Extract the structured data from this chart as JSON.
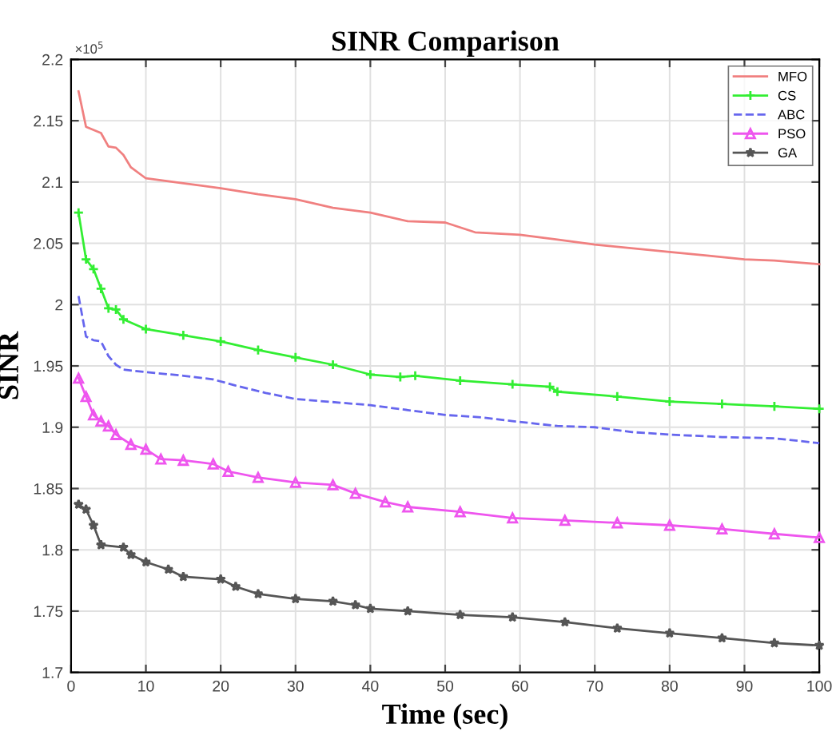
{
  "chart_data": {
    "type": "line",
    "title": "SINR Comparison",
    "xlabel": "Time (sec)",
    "ylabel": "SINR",
    "annotations": [
      "×10$^{5}$"
    ],
    "xlim": [
      0,
      100
    ],
    "xticks": [
      0,
      10,
      20,
      30,
      40,
      50,
      60,
      70,
      80,
      90,
      100
    ],
    "ylim": [
      1.7,
      2.2
    ],
    "yticks": [
      1.7,
      1.75,
      1.8,
      1.85,
      1.9,
      1.95,
      2,
      2.05,
      2.1,
      2.15,
      2.2
    ],
    "grid": true,
    "legend": "top right",
    "series": [
      {
        "name": "MFO",
        "color": "#f08080",
        "marker": "none",
        "line_style": "solid",
        "x": [
          1,
          2,
          4,
          5,
          6,
          7,
          8,
          10,
          15,
          20,
          25,
          30,
          35,
          40,
          45,
          50,
          54,
          60,
          65,
          70,
          80,
          85,
          90,
          94,
          100
        ],
        "values": [
          2.174,
          2.145,
          2.14,
          2.129,
          2.128,
          2.122,
          2.112,
          2.103,
          2.099,
          2.095,
          2.09,
          2.086,
          2.079,
          2.075,
          2.068,
          2.067,
          2.059,
          2.057,
          2.053,
          2.049,
          2.043,
          2.04,
          2.037,
          2.036,
          2.033
        ]
      },
      {
        "name": "CS",
        "color": "#33ee33",
        "marker": "cross",
        "line_style": "solid",
        "x": [
          1,
          2,
          3,
          4,
          5,
          6,
          7,
          10,
          15,
          20,
          25,
          30,
          35,
          40,
          44,
          46,
          52,
          59,
          64,
          65,
          73,
          80,
          87,
          94,
          100
        ],
        "values": [
          2.075,
          2.037,
          2.029,
          2.013,
          1.997,
          1.996,
          1.988,
          1.98,
          1.975,
          1.97,
          1.963,
          1.957,
          1.951,
          1.943,
          1.941,
          1.942,
          1.938,
          1.935,
          1.933,
          1.929,
          1.925,
          1.921,
          1.919,
          1.917,
          1.915
        ]
      },
      {
        "name": "ABC",
        "color": "#6666ee",
        "marker": "none",
        "line_style": "dashed",
        "x": [
          1,
          2,
          3,
          4,
          5,
          6,
          7,
          10,
          15,
          19,
          22,
          26,
          30,
          36,
          40,
          45,
          50,
          55,
          59,
          65,
          70,
          75,
          80,
          87,
          94,
          100
        ],
        "values": [
          2.007,
          1.974,
          1.971,
          1.97,
          1.958,
          1.951,
          1.947,
          1.945,
          1.942,
          1.939,
          1.934,
          1.928,
          1.923,
          1.92,
          1.918,
          1.914,
          1.91,
          1.908,
          1.905,
          1.901,
          1.9,
          1.896,
          1.894,
          1.892,
          1.891,
          1.887
        ]
      },
      {
        "name": "PSO",
        "color": "#ee55ee",
        "marker": "triangle",
        "line_style": "solid",
        "x": [
          1,
          2,
          3,
          4,
          5,
          6,
          8,
          10,
          12,
          15,
          19,
          21,
          25,
          30,
          35,
          38,
          42,
          45,
          52,
          59,
          66,
          73,
          80,
          87,
          94,
          100
        ],
        "values": [
          1.94,
          1.925,
          1.91,
          1.905,
          1.901,
          1.894,
          1.886,
          1.882,
          1.874,
          1.873,
          1.87,
          1.864,
          1.859,
          1.855,
          1.853,
          1.846,
          1.839,
          1.835,
          1.831,
          1.826,
          1.824,
          1.822,
          1.82,
          1.817,
          1.813,
          1.81
        ]
      },
      {
        "name": "GA",
        "color": "#555555",
        "marker": "star",
        "line_style": "solid",
        "x": [
          1,
          2,
          3,
          4,
          7,
          8,
          10,
          13,
          15,
          20,
          22,
          25,
          30,
          35,
          38,
          40,
          45,
          52,
          59,
          66,
          73,
          80,
          87,
          94,
          100
        ],
        "values": [
          1.837,
          1.833,
          1.82,
          1.804,
          1.802,
          1.796,
          1.79,
          1.784,
          1.778,
          1.776,
          1.77,
          1.764,
          1.76,
          1.758,
          1.755,
          1.752,
          1.75,
          1.747,
          1.745,
          1.741,
          1.736,
          1.732,
          1.728,
          1.724,
          1.722
        ]
      }
    ]
  }
}
